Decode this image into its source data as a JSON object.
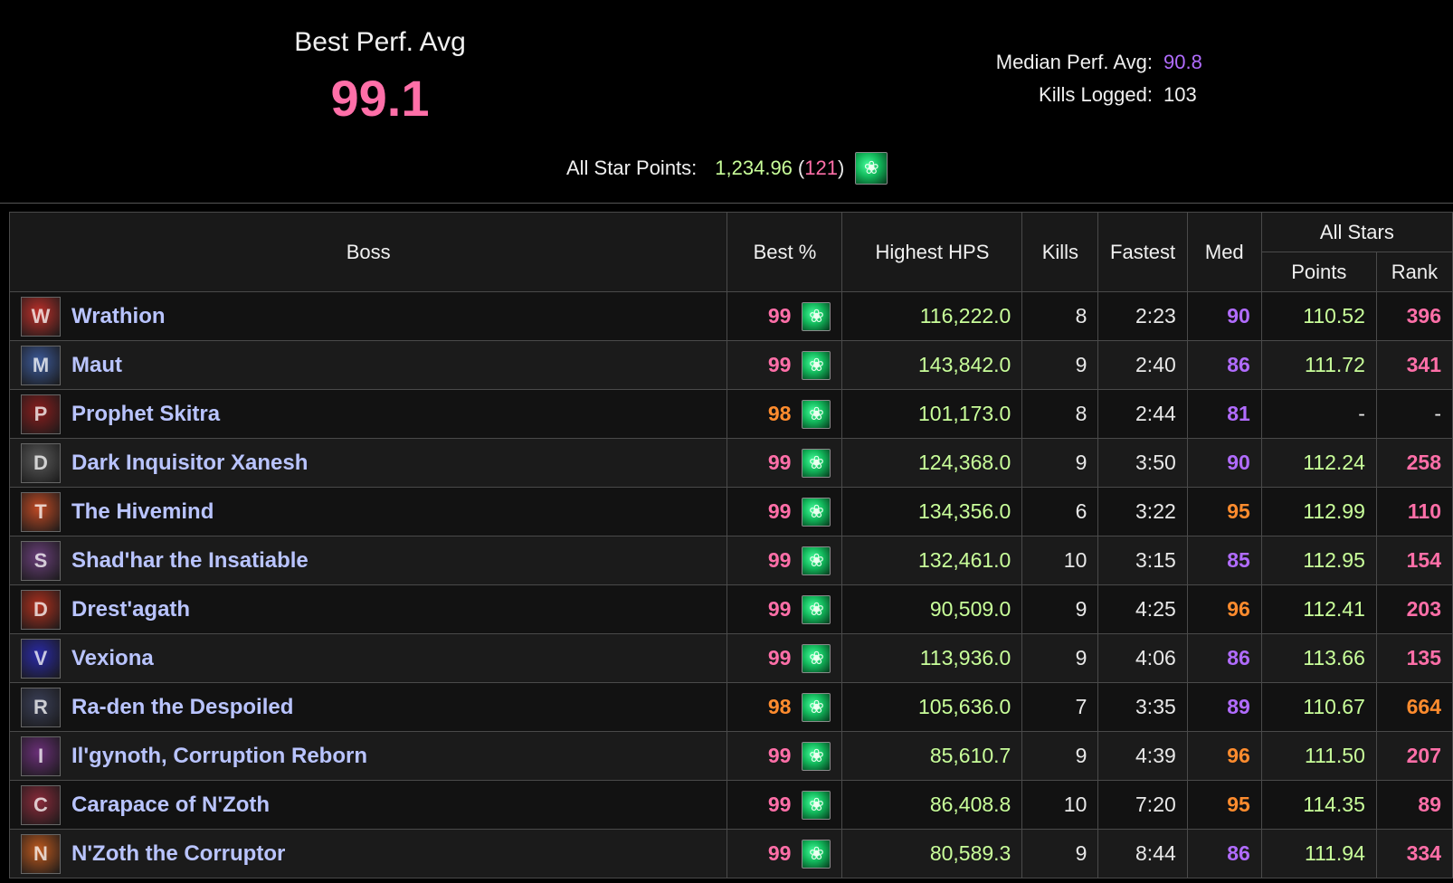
{
  "header": {
    "best_perf_label": "Best Perf. Avg",
    "best_perf_value": "99.1",
    "median_label": "Median Perf. Avg:",
    "median_value": "90.8",
    "kills_label": "Kills Logged:",
    "kills_value": "103",
    "allstar_label": "All Star Points:",
    "allstar_points": "1,234.96",
    "allstar_paren_open": "(",
    "allstar_rank": "121",
    "allstar_paren_close": ")",
    "allstar_icon": "leaf-icon"
  },
  "colors": {
    "pink": "#ff6fa8",
    "orange": "#ff8c2e",
    "purple": "#b16cff",
    "green": "#c9ff9a",
    "boss_name": "#b9c4ff"
  },
  "table": {
    "columns": {
      "boss": "Boss",
      "best": "Best %",
      "hps": "Highest HPS",
      "kills": "Kills",
      "fastest": "Fastest",
      "med": "Med",
      "allstars": "All Stars",
      "points": "Points",
      "rank": "Rank"
    },
    "rows": [
      {
        "boss": "Wrathion",
        "icon_color": "#c0302a",
        "best": "99",
        "best_tier": "pink",
        "hps": "116,222.0",
        "kills": "8",
        "fastest": "2:23",
        "med": "90",
        "med_tier": "purple",
        "points": "110.52",
        "rank": "396",
        "rank_tier": "pink"
      },
      {
        "boss": "Maut",
        "icon_color": "#3c5a9a",
        "best": "99",
        "best_tier": "pink",
        "hps": "143,842.0",
        "kills": "9",
        "fastest": "2:40",
        "med": "86",
        "med_tier": "purple",
        "points": "111.72",
        "rank": "341",
        "rank_tier": "pink"
      },
      {
        "boss": "Prophet Skitra",
        "icon_color": "#8a1d1d",
        "best": "98",
        "best_tier": "orange",
        "hps": "101,173.0",
        "kills": "8",
        "fastest": "2:44",
        "med": "81",
        "med_tier": "purple",
        "points": "-",
        "rank": "-",
        "rank_tier": "dash"
      },
      {
        "boss": "Dark Inquisitor Xanesh",
        "icon_color": "#5a5a5a",
        "best": "99",
        "best_tier": "pink",
        "hps": "124,368.0",
        "kills": "9",
        "fastest": "3:50",
        "med": "90",
        "med_tier": "purple",
        "points": "112.24",
        "rank": "258",
        "rank_tier": "pink"
      },
      {
        "boss": "The Hivemind",
        "icon_color": "#c04a24",
        "best": "99",
        "best_tier": "pink",
        "hps": "134,356.0",
        "kills": "6",
        "fastest": "3:22",
        "med": "95",
        "med_tier": "orange",
        "points": "112.99",
        "rank": "110",
        "rank_tier": "pink"
      },
      {
        "boss": "Shad'har the Insatiable",
        "icon_color": "#6a3f7a",
        "best": "99",
        "best_tier": "pink",
        "hps": "132,461.0",
        "kills": "10",
        "fastest": "3:15",
        "med": "85",
        "med_tier": "purple",
        "points": "112.95",
        "rank": "154",
        "rank_tier": "pink"
      },
      {
        "boss": "Drest'agath",
        "icon_color": "#b0301e",
        "best": "99",
        "best_tier": "pink",
        "hps": "90,509.0",
        "kills": "9",
        "fastest": "4:25",
        "med": "96",
        "med_tier": "orange",
        "points": "112.41",
        "rank": "203",
        "rank_tier": "pink"
      },
      {
        "boss": "Vexiona",
        "icon_color": "#2a2aa8",
        "best": "99",
        "best_tier": "pink",
        "hps": "113,936.0",
        "kills": "9",
        "fastest": "4:06",
        "med": "86",
        "med_tier": "purple",
        "points": "113.66",
        "rank": "135",
        "rank_tier": "pink"
      },
      {
        "boss": "Ra-den the Despoiled",
        "icon_color": "#3a3f58",
        "best": "98",
        "best_tier": "orange",
        "hps": "105,636.0",
        "kills": "7",
        "fastest": "3:35",
        "med": "89",
        "med_tier": "purple",
        "points": "110.67",
        "rank": "664",
        "rank_tier": "orange"
      },
      {
        "boss": "Il'gynoth, Corruption Reborn",
        "icon_color": "#6a2f78",
        "best": "99",
        "best_tier": "pink",
        "hps": "85,610.7",
        "kills": "9",
        "fastest": "4:39",
        "med": "96",
        "med_tier": "orange",
        "points": "111.50",
        "rank": "207",
        "rank_tier": "pink"
      },
      {
        "boss": "Carapace of N'Zoth",
        "icon_color": "#8a2a3a",
        "best": "99",
        "best_tier": "pink",
        "hps": "86,408.8",
        "kills": "10",
        "fastest": "7:20",
        "med": "95",
        "med_tier": "orange",
        "points": "114.35",
        "rank": "89",
        "rank_tier": "pink"
      },
      {
        "boss": "N'Zoth the Corruptor",
        "icon_color": "#c05a1e",
        "best": "99",
        "best_tier": "pink",
        "hps": "80,589.3",
        "kills": "9",
        "fastest": "8:44",
        "med": "86",
        "med_tier": "purple",
        "points": "111.94",
        "rank": "334",
        "rank_tier": "pink"
      }
    ]
  }
}
